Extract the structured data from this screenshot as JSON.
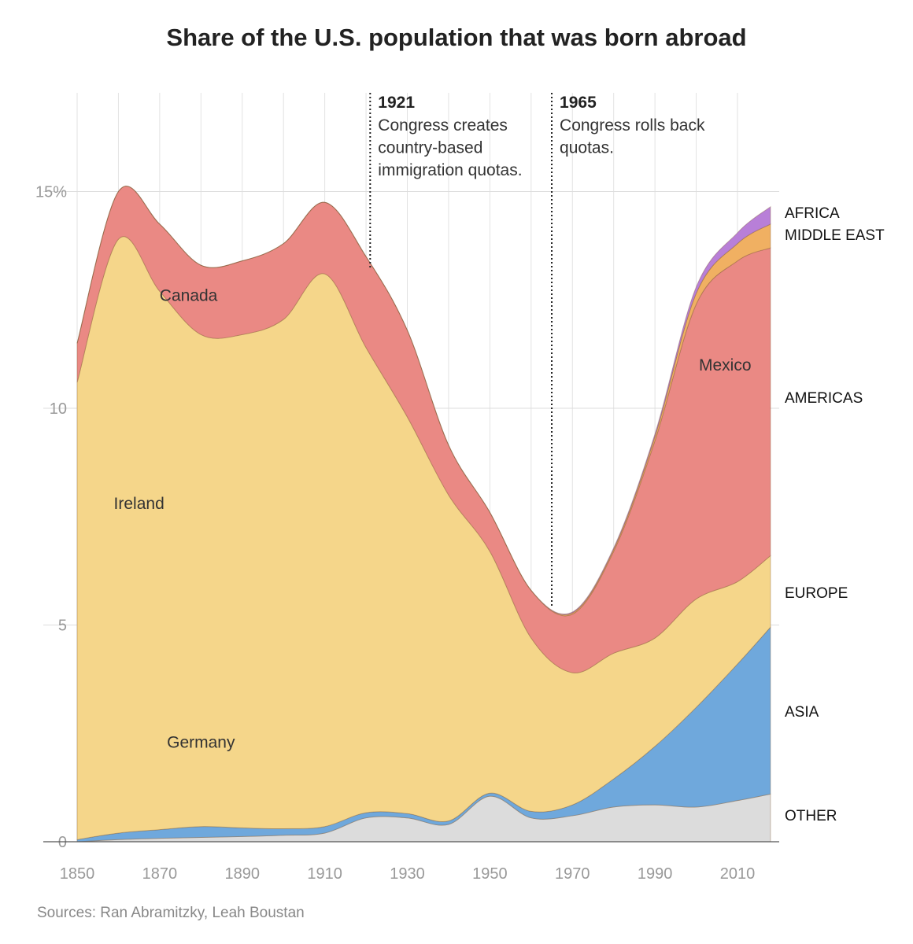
{
  "chart_data": {
    "type": "area",
    "stacked": true,
    "title": "Share of the U.S. population that was born abroad",
    "source": "Sources: Ran Abramitzky, Leah Boustan",
    "xlabel": "",
    "ylabel": "",
    "xlim": [
      1850,
      2018
    ],
    "ylim": [
      0,
      16
    ],
    "x_ticks": [
      1850,
      1870,
      1890,
      1910,
      1930,
      1950,
      1970,
      1990,
      2010
    ],
    "y_ticks": [
      {
        "v": 0,
        "label": "0"
      },
      {
        "v": 5,
        "label": "5"
      },
      {
        "v": 10,
        "label": "10"
      },
      {
        "v": 15,
        "label": "15%"
      }
    ],
    "grid": true,
    "x": [
      1850,
      1860,
      1870,
      1880,
      1890,
      1900,
      1910,
      1920,
      1930,
      1940,
      1950,
      1960,
      1970,
      1980,
      1990,
      2000,
      2010,
      2018
    ],
    "series": [
      {
        "name": "OTHER",
        "color": "#dcdcdc",
        "values": [
          0,
          0.05,
          0.08,
          0.1,
          0.12,
          0.15,
          0.2,
          0.55,
          0.55,
          0.4,
          1.05,
          0.55,
          0.6,
          0.8,
          0.85,
          0.8,
          0.95,
          1.1
        ]
      },
      {
        "name": "ASIA",
        "color": "#6fa8dc",
        "values": [
          0.05,
          0.15,
          0.2,
          0.25,
          0.2,
          0.15,
          0.15,
          0.12,
          0.1,
          0.08,
          0.07,
          0.15,
          0.25,
          0.65,
          1.35,
          2.3,
          3.15,
          3.85
        ]
      },
      {
        "name": "EUROPE",
        "color": "#f5d68a",
        "values": [
          10.55,
          13.7,
          12.42,
          11.35,
          11.38,
          11.75,
          12.75,
          10.73,
          9.15,
          7.52,
          5.58,
          4.0,
          3.05,
          2.9,
          2.5,
          2.5,
          1.9,
          1.65
        ]
      },
      {
        "name": "AMERICAS",
        "color": "#ea8984",
        "values": [
          0.9,
          1.1,
          1.55,
          1.6,
          1.7,
          1.75,
          1.65,
          2.1,
          2.0,
          1.15,
          0.9,
          1.1,
          1.35,
          2.35,
          4.55,
          6.8,
          7.4,
          7.1
        ]
      },
      {
        "name": "MIDDLE EAST",
        "color": "#f0b062",
        "values": [
          0,
          0,
          0,
          0,
          0,
          0,
          0,
          0,
          0,
          0,
          0,
          0,
          0.03,
          0.05,
          0.1,
          0.25,
          0.4,
          0.55
        ]
      },
      {
        "name": "AFRICA",
        "color": "#b87fd8",
        "values": [
          0,
          0,
          0,
          0,
          0,
          0,
          0,
          0,
          0,
          0,
          0,
          0,
          0.02,
          0.03,
          0.06,
          0.15,
          0.25,
          0.4
        ]
      }
    ],
    "annotations": [
      {
        "text": "Canada",
        "x": 1877,
        "y": 12.6
      },
      {
        "text": "Ireland",
        "x": 1865,
        "y": 7.8
      },
      {
        "text": "Germany",
        "x": 1880,
        "y": 2.3
      },
      {
        "text": "Mexico",
        "x": 2007,
        "y": 11.0
      }
    ],
    "events": [
      {
        "year": 1921,
        "label": "1921",
        "lines": [
          "Congress creates",
          "country-based",
          "immigration quotas."
        ],
        "end": 13.2
      },
      {
        "year": 1965,
        "label": "1965",
        "lines": [
          "Congress rolls back",
          "quotas."
        ],
        "end": 5.4
      }
    ]
  }
}
